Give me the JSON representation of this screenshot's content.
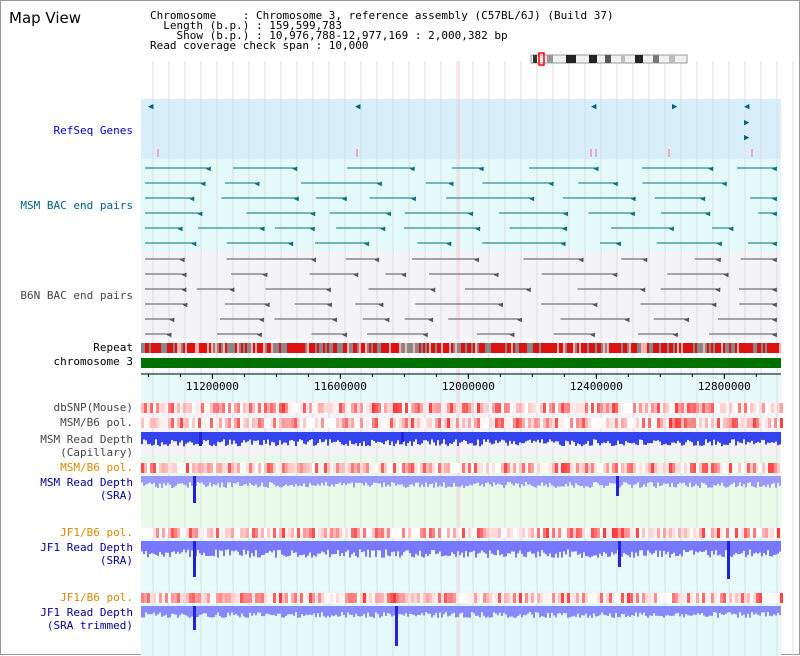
{
  "title": "Map View",
  "info": {
    "chromosome": "Chromosome    : Chromosome 3, reference assembly (C57BL/6J) (Build 37)",
    "length": "  Length (b.p.) : 159,599,783",
    "show": "    Show (b.p.) : 10,976,788-12,977,169 : 2,000,382 bp",
    "coverage": "Read coverage check span : 10,000"
  },
  "tracks": {
    "refseq": "RefSeq Genes",
    "msm_bac": "MSM BAC end pairs",
    "b6n_bac": "B6N BAC end pairs",
    "repeat": "Repeat",
    "chromosome": "chromosome 3",
    "dbsnp": "dbSNP(Mouse)",
    "msm_pol1": "MSM/B6 pol.",
    "msm_depth_cap_1": "MSM Read Depth",
    "msm_depth_cap_2": "(Capillary)",
    "msm_pol2": "MSM/B6 pol.",
    "msm_depth_sra_1": "MSM Read Depth",
    "msm_depth_sra_2": "(SRA)",
    "jf1_pol1": "JF1/B6 pol.",
    "jf1_depth_sra_1": "JF1 Read Depth",
    "jf1_depth_sra_2": "(SRA)",
    "jf1_pol2": "JF1/B6 pol.",
    "jf1_depth_trim_1": "JF1 Read Depth",
    "jf1_depth_trim_2": "(SRA trimmed)"
  },
  "axis": {
    "range": [
      10976788,
      12977169
    ],
    "ticks": [
      "11200000",
      "11600000",
      "12000000",
      "12400000",
      "12800000"
    ]
  },
  "colors": {
    "refseq_bg": "#d8eefa",
    "msm_bg": "#e4fafa",
    "b6n_bg": "#f4f4f8",
    "chromosome": "#007000",
    "depth": "#3333ff",
    "pol": "#ff4444"
  }
}
